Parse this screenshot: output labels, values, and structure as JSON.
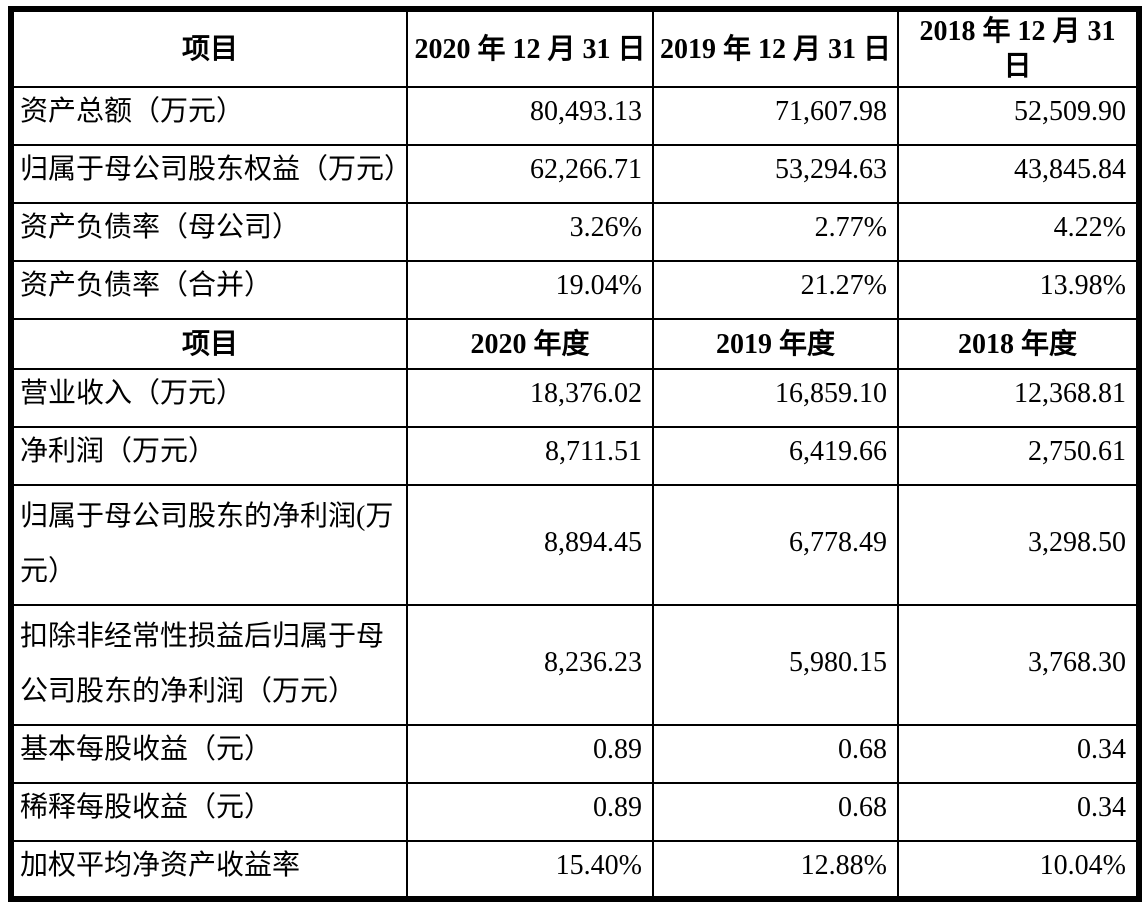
{
  "table": {
    "sections": [
      {
        "header": [
          "项目",
          "2020 年 12 月 31 日",
          "2019 年 12 月 31 日",
          "2018 年 12 月 31 日"
        ],
        "rows": [
          {
            "label": "资产总额（万元）",
            "values": [
              "80,493.13",
              "71,607.98",
              "52,509.90"
            ]
          },
          {
            "label": "归属于母公司股东权益（万元）",
            "values": [
              "62,266.71",
              "53,294.63",
              "43,845.84"
            ]
          },
          {
            "label": "资产负债率（母公司）",
            "values": [
              "3.26%",
              "2.77%",
              "4.22%"
            ]
          },
          {
            "label": "资产负债率（合并）",
            "values": [
              "19.04%",
              "21.27%",
              "13.98%"
            ]
          }
        ]
      },
      {
        "header": [
          "项目",
          "2020 年度",
          "2019 年度",
          "2018 年度"
        ],
        "rows": [
          {
            "label": "营业收入（万元）",
            "values": [
              "18,376.02",
              "16,859.10",
              "12,368.81"
            ]
          },
          {
            "label": "净利润（万元）",
            "values": [
              "8,711.51",
              "6,419.66",
              "2,750.61"
            ]
          },
          {
            "label": "归属于母公司股东的净利润(万元）",
            "values": [
              "8,894.45",
              "6,778.49",
              "3,298.50"
            ]
          },
          {
            "label": "扣除非经常性损益后归属于母公司股东的净利润（万元）",
            "values": [
              "8,236.23",
              "5,980.15",
              "3,768.30"
            ]
          },
          {
            "label": "基本每股收益（元）",
            "values": [
              "0.89",
              "0.68",
              "0.34"
            ]
          },
          {
            "label": "稀释每股收益（元）",
            "values": [
              "0.89",
              "0.68",
              "0.34"
            ]
          },
          {
            "label": "加权平均净资产收益率",
            "values": [
              "15.40%",
              "12.88%",
              "10.04%"
            ]
          }
        ]
      }
    ],
    "text_color": "#000000",
    "border_color": "#000000",
    "background_color": "#ffffff"
  }
}
